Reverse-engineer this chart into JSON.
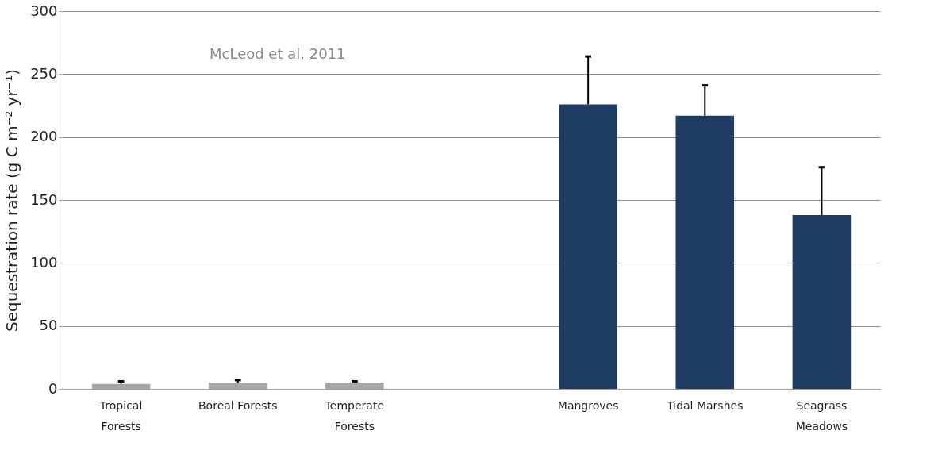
{
  "chart_data": {
    "type": "bar",
    "ylabel": "Sequestration rate (g C m⁻² yr⁻¹)",
    "categories": [
      "Tropical\nForests",
      "Boreal Forests",
      "Temperate\nForests",
      null,
      "Mangroves",
      "Tidal Marshes",
      "Seagrass\nMeadows"
    ],
    "values": [
      4,
      5,
      5,
      null,
      226,
      217,
      138
    ],
    "colors": [
      "#a6a6a6",
      "#a6a6a6",
      "#a6a6a6",
      "#a6a6a6",
      "#1f3d63",
      "#1f3d63",
      "#1f3d63"
    ],
    "errors": [
      [
        4,
        6
      ],
      [
        5,
        7
      ],
      [
        5,
        6
      ],
      null,
      [
        226,
        264
      ],
      [
        217,
        241
      ],
      [
        138,
        176
      ]
    ],
    "ylim": [
      0,
      300
    ],
    "yticks": [
      0,
      50,
      100,
      150,
      200,
      250,
      300
    ],
    "grid": "y",
    "annotations": [
      {
        "text": "McLeod et al. 2011"
      }
    ]
  }
}
